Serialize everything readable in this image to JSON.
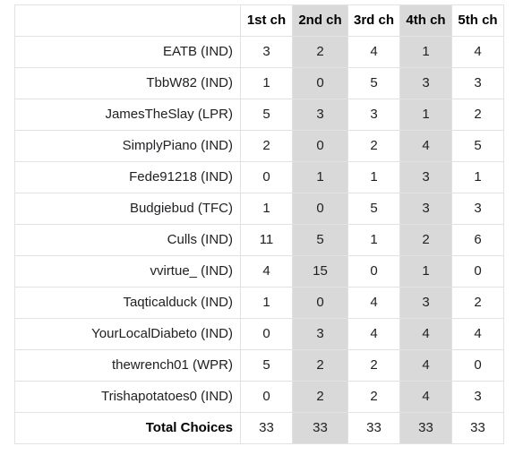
{
  "table": {
    "headers": [
      "",
      "1st ch",
      "2nd ch",
      "3rd ch",
      "4th ch",
      "5th ch"
    ],
    "rows": [
      {
        "name": "EATB (IND)",
        "values": [
          "3",
          "2",
          "4",
          "1",
          "4"
        ]
      },
      {
        "name": "TbbW82 (IND)",
        "values": [
          "1",
          "0",
          "5",
          "3",
          "3"
        ]
      },
      {
        "name": "JamesTheSlay (LPR)",
        "values": [
          "5",
          "3",
          "3",
          "1",
          "2"
        ]
      },
      {
        "name": "SimplyPiano (IND)",
        "values": [
          "2",
          "0",
          "2",
          "4",
          "5"
        ]
      },
      {
        "name": "Fede91218 (IND)",
        "values": [
          "0",
          "1",
          "1",
          "3",
          "1"
        ]
      },
      {
        "name": "Budgiebud (TFC)",
        "values": [
          "1",
          "0",
          "5",
          "3",
          "3"
        ]
      },
      {
        "name": "Culls (IND)",
        "values": [
          "11",
          "5",
          "1",
          "2",
          "6"
        ]
      },
      {
        "name": "vvirtue_ (IND)",
        "values": [
          "4",
          "15",
          "0",
          "1",
          "0"
        ]
      },
      {
        "name": "Taqticalduck (IND)",
        "values": [
          "1",
          "0",
          "4",
          "3",
          "2"
        ]
      },
      {
        "name": "YourLocalDiabeto (IND)",
        "values": [
          "0",
          "3",
          "4",
          "4",
          "4"
        ]
      },
      {
        "name": "thewrench01 (WPR)",
        "values": [
          "5",
          "2",
          "2",
          "4",
          "0"
        ]
      },
      {
        "name": "Trishapotatoes0 (IND)",
        "values": [
          "0",
          "2",
          "2",
          "4",
          "3"
        ]
      }
    ],
    "total": {
      "name": "Total Choices",
      "values": [
        "33",
        "33",
        "33",
        "33",
        "33"
      ]
    }
  },
  "colors": {
    "shaded_column": "#d9d9d9",
    "grid_line": "#e2e2e2"
  }
}
